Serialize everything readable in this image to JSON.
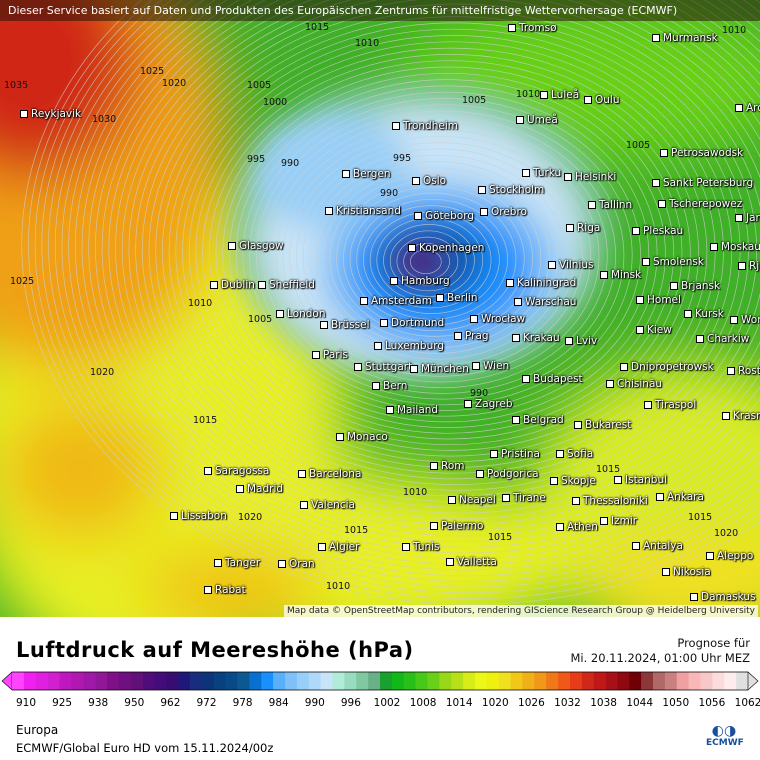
{
  "header": {
    "notice": "Dieser Service basiert auf Daten und Produkten des Europäischen Zentrums für mittelfristige Wettervorhersage (ECMWF)"
  },
  "map": {
    "attribution": "Map data © OpenStreetMap contributors, rendering GIScience Research Group @ Heidelberg University",
    "cities": [
      "Tromsø",
      "Murmansk",
      "Luleå",
      "Oulu",
      "Arch",
      "Reykjavik",
      "Trondheim",
      "Umeå",
      "Petrosawodsk",
      "Bergen",
      "Turku",
      "Helsinki",
      "Oslo",
      "Stockholm",
      "Sankt Petersburg",
      "Kristiansand",
      "Göteborg",
      "Orebro",
      "Tallinn",
      "Tscherepowez",
      "Jaros",
      "Glasgow",
      "Riga",
      "Pleskau",
      "Kopenhagen",
      "Moskau",
      "Vilnius",
      "Minsk",
      "Smolensk",
      "Rjas",
      "Dublin",
      "Sheffield",
      "Hamburg",
      "Kaliningrad",
      "Brjansk",
      "Amsterdam",
      "Berlin",
      "Warschau",
      "Homel",
      "Kursk",
      "Worone",
      "London",
      "Brüssel",
      "Dortmund",
      "Wrocław",
      "Kiew",
      "Prag",
      "Krakau",
      "Charkiw",
      "Luxemburg",
      "Lviv",
      "Paris",
      "Stuttgart",
      "München",
      "Wien",
      "Dnipropetrowsk",
      "Rosto",
      "Bern",
      "Budapest",
      "Chisinău",
      "Mailand",
      "Zagreb",
      "Tiraspol",
      "Krasno",
      "Belgrad",
      "Monaco",
      "Bukarest",
      "Pristina",
      "Sofia",
      "Saragossa",
      "Barcelona",
      "Rom",
      "Podgorica",
      "Istanbul",
      "Madrid",
      "Skopje",
      "Tirane",
      "Thessaloniki",
      "Ankara",
      "Valencia",
      "Neapel",
      "Lissabon",
      "Izmir",
      "Athen",
      "Palermo",
      "Antalya",
      "Algier",
      "Tunis",
      "Aleppo",
      "Valletta",
      "Tanger",
      "Oran",
      "Nikosia",
      "Rabat",
      "Damaskus"
    ],
    "isobar_labels": [
      "1015",
      "1010",
      "1025",
      "1020",
      "1030",
      "1005",
      "1000",
      "995",
      "990",
      "990",
      "1010",
      "1005",
      "1025",
      "1010",
      "1005",
      "1020",
      "1015",
      "1010",
      "1015",
      "1015",
      "1010",
      "1020",
      "1035",
      "1015",
      "1010",
      "1005",
      "995",
      "990",
      "1015",
      "1020"
    ]
  },
  "legend": {
    "title": "Luftdruck auf Meereshöhe (hPa)",
    "forecast_label": "Prognose für",
    "forecast_time": "Mi. 20.11.2024, 01:00 Uhr MEZ",
    "ticks": [
      "910",
      "925",
      "938",
      "950",
      "962",
      "972",
      "978",
      "984",
      "990",
      "996",
      "1002",
      "1008",
      "1014",
      "1020",
      "1026",
      "1032",
      "1038",
      "1044",
      "1050",
      "1056",
      "1062"
    ],
    "colors": [
      "#ff44ff",
      "#f020f0",
      "#e020e0",
      "#d020d0",
      "#c018c0",
      "#b018b0",
      "#a018a8",
      "#901898",
      "#801088",
      "#701080",
      "#601078",
      "#500c78",
      "#440c78",
      "#380c70",
      "#201878",
      "#182c80",
      "#0c3478",
      "#084080",
      "#084a88",
      "#0c5890",
      "#0a70d0",
      "#1a90ff",
      "#58b0f8",
      "#80c0f8",
      "#98cff8",
      "#b0d8f8",
      "#c8e4f8",
      "#b0ecd8",
      "#98dcc0",
      "#80c8a0",
      "#68b088",
      "#18a030",
      "#10b818",
      "#28c018",
      "#48c818",
      "#68d018",
      "#98d818",
      "#b8e018",
      "#d8ec18",
      "#ecf818",
      "#f0f010",
      "#f0e020",
      "#f0c818",
      "#f0b018",
      "#f09818",
      "#f07818",
      "#f05818",
      "#e83c18",
      "#d02818",
      "#c01818",
      "#a81018",
      "#900810",
      "#700008",
      "#8c3838",
      "#b06868",
      "#c88080",
      "#f0a0a0",
      "#f8b8b8",
      "#f8c8c8",
      "#fadcdc",
      "#fcecec",
      "#e0e0e0"
    ],
    "region": "Europa",
    "model_run": "ECMWF/Global Euro HD vom  15.11.2024/00z",
    "logo_text": "ECMWF"
  }
}
